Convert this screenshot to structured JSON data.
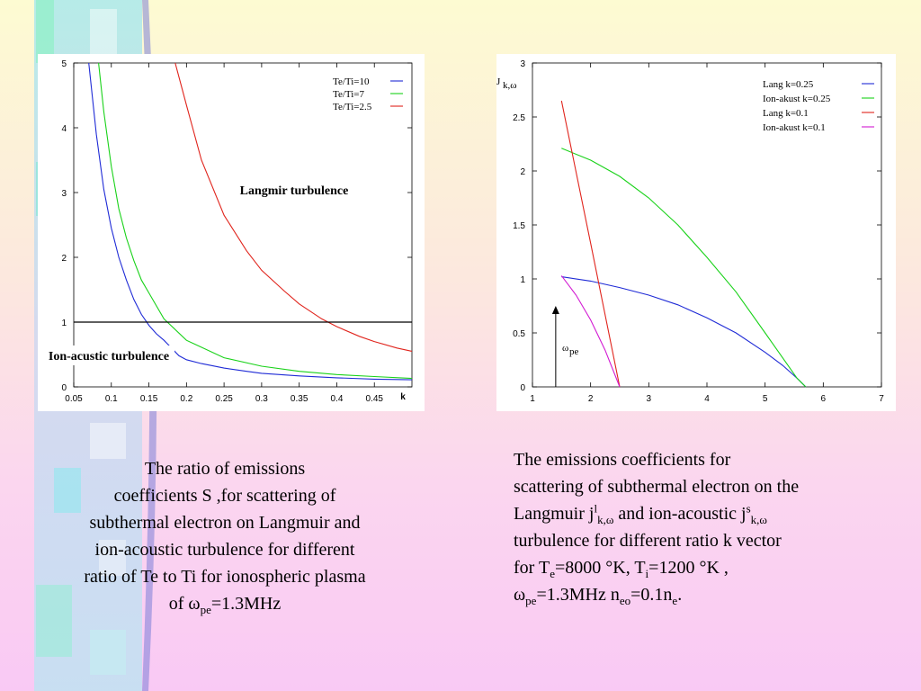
{
  "colors": {
    "blue": "#1f2bd6",
    "green": "#19d219",
    "red": "#e0241c",
    "magenta": "#d21ad2",
    "black": "#000000"
  },
  "chart_data": [
    {
      "type": "line",
      "title": "",
      "xlabel": "k",
      "ylabel": "",
      "xlim": [
        0.05,
        0.5
      ],
      "ylim": [
        0,
        5
      ],
      "xticks": [
        "0.05",
        "0.1",
        "0.15",
        "0.2",
        "0.25",
        "0.3",
        "0.35",
        "0.4",
        "0.45"
      ],
      "yticks": [
        "0",
        "1",
        "2",
        "3",
        "4",
        "5"
      ],
      "grid": false,
      "legend_position": "top-right",
      "annotations": [
        "Langmir turbulence",
        "Ion-acustic turbulence"
      ],
      "hline": 1,
      "series": [
        {
          "name": "Te/Ti=10",
          "color": "#1f2bd6",
          "x": [
            0.07,
            0.08,
            0.09,
            0.1,
            0.11,
            0.12,
            0.13,
            0.14,
            0.15,
            0.16,
            0.17,
            0.19,
            0.2,
            0.22,
            0.25,
            0.28,
            0.3,
            0.35,
            0.4,
            0.45,
            0.5
          ],
          "y": [
            5.0,
            3.9,
            3.05,
            2.45,
            2.0,
            1.65,
            1.35,
            1.12,
            0.95,
            0.82,
            0.72,
            0.48,
            0.42,
            0.36,
            0.29,
            0.24,
            0.21,
            0.17,
            0.14,
            0.12,
            0.11
          ]
        },
        {
          "name": "Te/Ti=7",
          "color": "#19d219",
          "x": [
            0.083,
            0.09,
            0.1,
            0.11,
            0.12,
            0.13,
            0.14,
            0.15,
            0.17,
            0.2,
            0.25,
            0.3,
            0.35,
            0.4,
            0.45,
            0.5
          ],
          "y": [
            5.0,
            4.25,
            3.4,
            2.75,
            2.3,
            1.95,
            1.65,
            1.45,
            1.05,
            0.72,
            0.45,
            0.32,
            0.24,
            0.19,
            0.16,
            0.13
          ]
        },
        {
          "name": "Te/Ti=2.5",
          "color": "#e0241c",
          "x": [
            0.185,
            0.2,
            0.22,
            0.25,
            0.28,
            0.3,
            0.33,
            0.35,
            0.38,
            0.4,
            0.43,
            0.45,
            0.48,
            0.5
          ],
          "y": [
            5.0,
            4.35,
            3.5,
            2.65,
            2.1,
            1.8,
            1.48,
            1.28,
            1.05,
            0.93,
            0.78,
            0.7,
            0.6,
            0.55
          ]
        }
      ]
    },
    {
      "type": "line",
      "title": "",
      "xlabel": "",
      "ylabel": "J",
      "ylabel_sub": "k,ω",
      "xlim": [
        1,
        7
      ],
      "ylim": [
        0,
        3
      ],
      "xticks": [
        "1",
        "2",
        "3",
        "4",
        "5",
        "6",
        "7"
      ],
      "yticks": [
        "0",
        "0.5",
        "1",
        "1.5",
        "2",
        "2.5",
        "3"
      ],
      "grid": false,
      "legend_position": "top-right",
      "annotations": [
        "ω",
        "pe"
      ],
      "arrow": {
        "x": 1.4,
        "y_from": 0,
        "y_to": 0.75
      },
      "series": [
        {
          "name": "Lang k=0.25",
          "color": "#1f2bd6",
          "x": [
            1.5,
            2.0,
            2.5,
            3.0,
            3.5,
            4.0,
            4.5,
            5.0,
            5.3,
            5.55,
            5.7
          ],
          "y": [
            1.02,
            0.98,
            0.92,
            0.85,
            0.76,
            0.64,
            0.5,
            0.32,
            0.2,
            0.08,
            0.0
          ]
        },
        {
          "name": "Ion-akust k=0.25",
          "color": "#19d219",
          "x": [
            1.5,
            2.0,
            2.5,
            3.0,
            3.5,
            4.0,
            4.5,
            5.0,
            5.3,
            5.55,
            5.7
          ],
          "y": [
            2.21,
            2.1,
            1.95,
            1.75,
            1.5,
            1.2,
            0.88,
            0.5,
            0.27,
            0.08,
            0.0
          ]
        },
        {
          "name": "Lang k=0.1",
          "color": "#e0241c",
          "x": [
            1.5,
            2.0,
            2.5
          ],
          "y": [
            2.65,
            1.33,
            0.0
          ]
        },
        {
          "name": "Ion-akust k=0.1",
          "color": "#d21ad2",
          "x": [
            1.5,
            1.75,
            2.0,
            2.25,
            2.5
          ],
          "y": [
            1.03,
            0.85,
            0.62,
            0.34,
            0.0
          ]
        }
      ]
    }
  ],
  "captions": {
    "left": {
      "line1": "The ratio of emissions",
      "line2": "coefficients  S ,for scattering of",
      "line3": "subthermal electron on Langmuir and",
      "line4": "ion-acoustic turbulence for different",
      "line5": "ratio of Te to Ti for ionospheric plasma",
      "line6_pre": "of ω",
      "line6_sub": "pe",
      "line6_post": "=1.3MHz"
    },
    "right": {
      "line1": "The emissions coefficients  for",
      "line2": "scattering of subthermal electron on the",
      "line3_a": "Langmuir j",
      "line3_sup1": "l",
      "line3_sub1": "k,ω",
      "line3_b": " and ion-acoustic j",
      "line3_sup2": "s",
      "line3_sub2": "k,ω",
      "line4": "turbulence for different ratio k vector",
      "line5_a": "for T",
      "line5_sub1": "e",
      "line5_b": "=8000 °K, T",
      "line5_sub2": "i",
      "line5_c": "=1200 °K ,",
      "line6_a": "ω",
      "line6_sub1": "pe",
      "line6_b": "=1.3MHz n",
      "line6_sub2": "eo",
      "line6_c": "=0.1n",
      "line6_sub3": "e",
      "line6_d": "."
    }
  }
}
